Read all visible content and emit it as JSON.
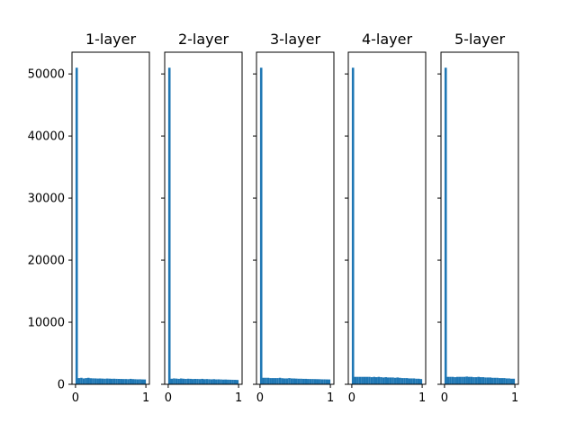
{
  "chart_data": {
    "type": "bar",
    "layout": "1 row x 5 histogram panels, shared y-axis labels on first panel only",
    "bar_color": "#1f77b4",
    "xlim": [
      -0.05,
      1.05
    ],
    "ylim": [
      0,
      53500
    ],
    "xticks": [
      0,
      1
    ],
    "xtick_labels": [
      "0",
      "1"
    ],
    "yticks": [
      0,
      10000,
      20000,
      30000,
      40000,
      50000
    ],
    "ytick_labels": [
      "0",
      "10000",
      "20000",
      "30000",
      "40000",
      "50000"
    ],
    "bins": 30,
    "bin_range": [
      0,
      1
    ],
    "panels": [
      {
        "title": "1-layer",
        "values": [
          51000,
          1000,
          1050,
          950,
          1000,
          1050,
          980,
          960,
          950,
          930,
          940,
          920,
          900,
          930,
          910,
          890,
          900,
          880,
          870,
          860,
          850,
          850,
          830,
          880,
          840,
          820,
          800,
          810,
          790,
          780
        ]
      },
      {
        "title": "2-layer",
        "values": [
          51000,
          900,
          950,
          920,
          880,
          940,
          900,
          870,
          900,
          880,
          850,
          870,
          860,
          840,
          880,
          830,
          850,
          820,
          800,
          830,
          790,
          800,
          780,
          760,
          770,
          750,
          740,
          730,
          720,
          700
        ]
      },
      {
        "title": "3-layer",
        "values": [
          51000,
          1050,
          1050,
          1050,
          1000,
          1000,
          1000,
          1000,
          1050,
          980,
          950,
          950,
          1000,
          950,
          940,
          920,
          900,
          900,
          880,
          880,
          860,
          850,
          850,
          840,
          830,
          820,
          800,
          800,
          790,
          780
        ]
      },
      {
        "title": "4-layer",
        "values": [
          51000,
          1200,
          1200,
          1200,
          1200,
          1200,
          1200,
          1200,
          1150,
          1200,
          1150,
          1200,
          1150,
          1100,
          1150,
          1100,
          1100,
          1100,
          1050,
          1100,
          1050,
          1000,
          1000,
          1000,
          950,
          950,
          950,
          900,
          900,
          850
        ]
      },
      {
        "title": "5-layer",
        "values": [
          51000,
          1200,
          1200,
          1200,
          1150,
          1200,
          1200,
          1200,
          1200,
          1250,
          1200,
          1200,
          1150,
          1150,
          1200,
          1150,
          1150,
          1100,
          1100,
          1100,
          1050,
          1050,
          1050,
          1000,
          1000,
          1000,
          950,
          950,
          900,
          900
        ]
      }
    ]
  }
}
